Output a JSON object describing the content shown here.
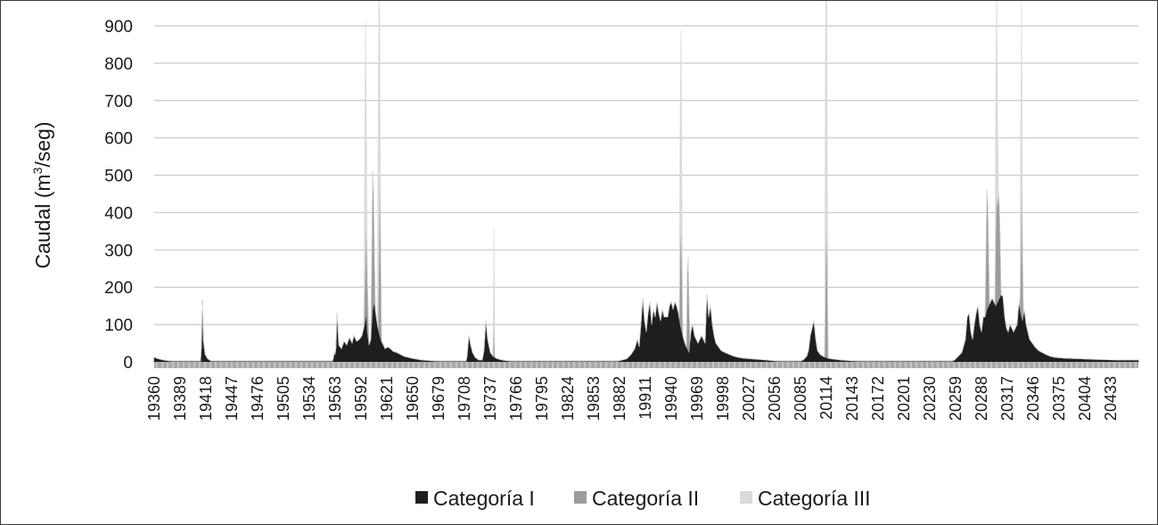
{
  "chart_data": {
    "type": "area",
    "ylabel": "Caudal (m³/seg)",
    "ylabel_parts": {
      "prefix": "Caudal (m",
      "sup": "3",
      "suffix": "/seg)"
    },
    "ylim": [
      0,
      900
    ],
    "y_ticks": [
      0,
      100,
      200,
      300,
      400,
      500,
      600,
      700,
      800,
      900
    ],
    "xlim": [
      19360,
      20464
    ],
    "x_ticks": [
      19360,
      19389,
      19418,
      19447,
      19476,
      19505,
      19534,
      19563,
      19592,
      19621,
      19650,
      19679,
      19708,
      19737,
      19766,
      19795,
      19824,
      19853,
      19882,
      19911,
      19940,
      19969,
      19998,
      20027,
      20056,
      20085,
      20114,
      20143,
      20172,
      20201,
      20230,
      20259,
      20288,
      20317,
      20346,
      20375,
      20404,
      20433
    ],
    "grid": true,
    "legend_position": "bottom",
    "stacked": true,
    "series": [
      {
        "name": "Categoría I",
        "color": "#1e1e1e",
        "points": [
          [
            19360,
            12
          ],
          [
            19365,
            8
          ],
          [
            19372,
            4
          ],
          [
            19380,
            2
          ],
          [
            19412,
            2
          ],
          [
            19413,
            40
          ],
          [
            19414,
            165
          ],
          [
            19415,
            60
          ],
          [
            19417,
            20
          ],
          [
            19420,
            8
          ],
          [
            19424,
            2
          ],
          [
            19560,
            2
          ],
          [
            19561,
            10
          ],
          [
            19562,
            25
          ],
          [
            19563,
            20
          ],
          [
            19564,
            40
          ],
          [
            19565,
            130
          ],
          [
            19567,
            45
          ],
          [
            19570,
            35
          ],
          [
            19573,
            55
          ],
          [
            19576,
            45
          ],
          [
            19579,
            65
          ],
          [
            19582,
            50
          ],
          [
            19584,
            70
          ],
          [
            19587,
            55
          ],
          [
            19590,
            60
          ],
          [
            19593,
            70
          ],
          [
            19596,
            100
          ],
          [
            19598,
            130
          ],
          [
            19599,
            80
          ],
          [
            19601,
            45
          ],
          [
            19603,
            60
          ],
          [
            19605,
            140
          ],
          [
            19607,
            160
          ],
          [
            19609,
            120
          ],
          [
            19611,
            90
          ],
          [
            19613,
            70
          ],
          [
            19615,
            55
          ],
          [
            19617,
            45
          ],
          [
            19619,
            35
          ],
          [
            19622,
            40
          ],
          [
            19625,
            35
          ],
          [
            19628,
            28
          ],
          [
            19632,
            25
          ],
          [
            19636,
            20
          ],
          [
            19640,
            15
          ],
          [
            19645,
            12
          ],
          [
            19650,
            9
          ],
          [
            19660,
            5
          ],
          [
            19670,
            3
          ],
          [
            19680,
            2
          ],
          [
            19710,
            2
          ],
          [
            19711,
            15
          ],
          [
            19713,
            70
          ],
          [
            19715,
            45
          ],
          [
            19717,
            25
          ],
          [
            19720,
            12
          ],
          [
            19724,
            5
          ],
          [
            19728,
            5
          ],
          [
            19730,
            30
          ],
          [
            19732,
            110
          ],
          [
            19734,
            60
          ],
          [
            19737,
            25
          ],
          [
            19740,
            15
          ],
          [
            19745,
            8
          ],
          [
            19752,
            4
          ],
          [
            19760,
            2
          ],
          [
            19880,
            2
          ],
          [
            19885,
            5
          ],
          [
            19890,
            8
          ],
          [
            19895,
            20
          ],
          [
            19899,
            35
          ],
          [
            19902,
            60
          ],
          [
            19904,
            40
          ],
          [
            19906,
            100
          ],
          [
            19908,
            170
          ],
          [
            19910,
            110
          ],
          [
            19912,
            80
          ],
          [
            19914,
            130
          ],
          [
            19916,
            160
          ],
          [
            19918,
            100
          ],
          [
            19920,
            140
          ],
          [
            19922,
            120
          ],
          [
            19924,
            160
          ],
          [
            19926,
            130
          ],
          [
            19928,
            110
          ],
          [
            19930,
            140
          ],
          [
            19932,
            120
          ],
          [
            19934,
            120
          ],
          [
            19936,
            120
          ],
          [
            19938,
            150
          ],
          [
            19940,
            160
          ],
          [
            19942,
            140
          ],
          [
            19944,
            160
          ],
          [
            19946,
            150
          ],
          [
            19948,
            130
          ],
          [
            19950,
            100
          ],
          [
            19952,
            80
          ],
          [
            19954,
            60
          ],
          [
            19956,
            45
          ],
          [
            19958,
            35
          ],
          [
            19960,
            25
          ],
          [
            19962,
            80
          ],
          [
            19964,
            100
          ],
          [
            19966,
            70
          ],
          [
            19968,
            60
          ],
          [
            19970,
            50
          ],
          [
            19972,
            60
          ],
          [
            19974,
            70
          ],
          [
            19976,
            60
          ],
          [
            19978,
            50
          ],
          [
            19980,
            180
          ],
          [
            19982,
            120
          ],
          [
            19984,
            150
          ],
          [
            19986,
            100
          ],
          [
            19988,
            70
          ],
          [
            19990,
            50
          ],
          [
            19993,
            40
          ],
          [
            19996,
            30
          ],
          [
            20000,
            25
          ],
          [
            20005,
            20
          ],
          [
            20010,
            15
          ],
          [
            20015,
            12
          ],
          [
            20020,
            10
          ],
          [
            20030,
            8
          ],
          [
            20040,
            6
          ],
          [
            20050,
            4
          ],
          [
            20060,
            2
          ],
          [
            20085,
            2
          ],
          [
            20088,
            5
          ],
          [
            20090,
            10
          ],
          [
            20092,
            15
          ],
          [
            20094,
            30
          ],
          [
            20096,
            70
          ],
          [
            20098,
            90
          ],
          [
            20100,
            110
          ],
          [
            20102,
            60
          ],
          [
            20104,
            30
          ],
          [
            20107,
            20
          ],
          [
            20110,
            15
          ],
          [
            20115,
            10
          ],
          [
            20120,
            8
          ],
          [
            20130,
            5
          ],
          [
            20140,
            3
          ],
          [
            20150,
            2
          ],
          [
            20255,
            2
          ],
          [
            20258,
            5
          ],
          [
            20262,
            15
          ],
          [
            20266,
            25
          ],
          [
            20270,
            60
          ],
          [
            20272,
            120
          ],
          [
            20274,
            130
          ],
          [
            20276,
            80
          ],
          [
            20278,
            60
          ],
          [
            20280,
            100
          ],
          [
            20282,
            130
          ],
          [
            20284,
            150
          ],
          [
            20286,
            100
          ],
          [
            20288,
            80
          ],
          [
            20290,
            120
          ],
          [
            20292,
            120
          ],
          [
            20294,
            140
          ],
          [
            20296,
            150
          ],
          [
            20298,
            160
          ],
          [
            20300,
            170
          ],
          [
            20302,
            160
          ],
          [
            20304,
            150
          ],
          [
            20306,
            160
          ],
          [
            20308,
            170
          ],
          [
            20310,
            180
          ],
          [
            20312,
            175
          ],
          [
            20314,
            120
          ],
          [
            20316,
            90
          ],
          [
            20318,
            80
          ],
          [
            20320,
            100
          ],
          [
            20322,
            90
          ],
          [
            20324,
            80
          ],
          [
            20326,
            90
          ],
          [
            20328,
            100
          ],
          [
            20330,
            160
          ],
          [
            20332,
            130
          ],
          [
            20334,
            110
          ],
          [
            20336,
            140
          ],
          [
            20338,
            100
          ],
          [
            20340,
            80
          ],
          [
            20342,
            60
          ],
          [
            20345,
            50
          ],
          [
            20348,
            40
          ],
          [
            20352,
            30
          ],
          [
            20356,
            25
          ],
          [
            20360,
            20
          ],
          [
            20365,
            15
          ],
          [
            20370,
            12
          ],
          [
            20380,
            10
          ],
          [
            20400,
            8
          ],
          [
            20420,
            6
          ],
          [
            20440,
            5
          ],
          [
            20462,
            5
          ]
        ]
      },
      {
        "name": "Categoría II",
        "color": "#9c9c9c",
        "points": [
          [
            19360,
            0
          ],
          [
            19595,
            0
          ],
          [
            19597,
            170
          ],
          [
            19598,
            260
          ],
          [
            19599,
            150
          ],
          [
            19601,
            0
          ],
          [
            19603,
            0
          ],
          [
            19604,
            180
          ],
          [
            19605,
            370
          ],
          [
            19606,
            300
          ],
          [
            19607,
            140
          ],
          [
            19608,
            0
          ],
          [
            19611,
            0
          ],
          [
            19612,
            180
          ],
          [
            19613,
            480
          ],
          [
            19614,
            260
          ],
          [
            19615,
            0
          ],
          [
            19740,
            0
          ],
          [
            19741,
            120
          ],
          [
            19742,
            0
          ],
          [
            19949,
            0
          ],
          [
            19950,
            200
          ],
          [
            19951,
            280
          ],
          [
            19952,
            160
          ],
          [
            19953,
            0
          ],
          [
            19957,
            0
          ],
          [
            19958,
            200
          ],
          [
            19959,
            250
          ],
          [
            19960,
            120
          ],
          [
            19961,
            0
          ],
          [
            20112,
            0
          ],
          [
            20113,
            180
          ],
          [
            20114,
            380
          ],
          [
            20115,
            250
          ],
          [
            20116,
            0
          ],
          [
            20292,
            0
          ],
          [
            20293,
            150
          ],
          [
            20294,
            320
          ],
          [
            20295,
            280
          ],
          [
            20296,
            150
          ],
          [
            20297,
            0
          ],
          [
            20303,
            0
          ],
          [
            20304,
            200
          ],
          [
            20305,
            300
          ],
          [
            20306,
            260
          ],
          [
            20307,
            290
          ],
          [
            20308,
            250
          ],
          [
            20309,
            150
          ],
          [
            20310,
            0
          ],
          [
            20331,
            0
          ],
          [
            20332,
            120
          ],
          [
            20333,
            440
          ],
          [
            20334,
            200
          ],
          [
            20335,
            0
          ],
          [
            20464,
            0
          ]
        ]
      },
      {
        "name": "Categoría III",
        "color": "#dadada",
        "points": [
          [
            19360,
            0
          ],
          [
            19595,
            0
          ],
          [
            19596,
            300
          ],
          [
            19597,
            630
          ],
          [
            19598,
            250
          ],
          [
            19599,
            0
          ],
          [
            19610,
            0
          ],
          [
            19611,
            450
          ],
          [
            19612,
            750
          ],
          [
            19613,
            350
          ],
          [
            19614,
            0
          ],
          [
            19740,
            0
          ],
          [
            19741,
            230
          ],
          [
            19742,
            0
          ],
          [
            19949,
            0
          ],
          [
            19950,
            380
          ],
          [
            19951,
            520
          ],
          [
            19952,
            200
          ],
          [
            19953,
            0
          ],
          [
            20112,
            0
          ],
          [
            20113,
            650
          ],
          [
            20114,
            840
          ],
          [
            20115,
            300
          ],
          [
            20116,
            0
          ],
          [
            20303,
            0
          ],
          [
            20304,
            400
          ],
          [
            20305,
            540
          ],
          [
            20306,
            250
          ],
          [
            20307,
            0
          ],
          [
            20331,
            0
          ],
          [
            20332,
            360
          ],
          [
            20333,
            410
          ],
          [
            20334,
            0
          ],
          [
            20464,
            0
          ]
        ]
      }
    ]
  }
}
